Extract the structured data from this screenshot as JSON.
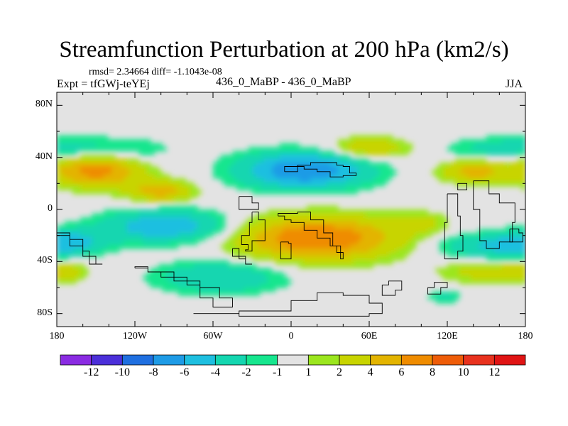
{
  "chart_data": {
    "type": "heatmap",
    "title": "Streamfunction Perturbation at 200 hPa (km2/s)",
    "stats_text": "rmsd= 2.34664 diff= -1.1043e-08",
    "left_label": "Expt = tfGWj-teYEj",
    "center_label": "436_0_MaBP - 436_0_MaBP",
    "right_label": "JJA",
    "x_ticks": [
      "180",
      "120W",
      "60W",
      "0",
      "60E",
      "120E",
      "180"
    ],
    "x_tick_values": [
      -180,
      -120,
      -60,
      0,
      60,
      120,
      180
    ],
    "y_ticks": [
      "80N",
      "40N",
      "0",
      "40S",
      "80S"
    ],
    "y_tick_values": [
      80,
      40,
      0,
      -40,
      -80
    ],
    "xlim": [
      -180,
      180
    ],
    "ylim": [
      -90,
      90
    ],
    "colorbar": {
      "levels": [
        -12,
        -10,
        -8,
        -6,
        -4,
        -2,
        -1,
        1,
        2,
        4,
        6,
        8,
        10,
        12
      ],
      "labels": [
        "-12",
        "-10",
        "-8",
        "-6",
        "-4",
        "-2",
        "-1",
        "1",
        "2",
        "4",
        "6",
        "8",
        "10",
        "12"
      ],
      "colors": [
        "#8a2be2",
        "#4b2fd9",
        "#1f6fe0",
        "#1e9be6",
        "#1ebfe0",
        "#14d6b0",
        "#16e68e",
        "#e3e3e3",
        "#9be61e",
        "#c8d400",
        "#e3b400",
        "#ef8c00",
        "#ee5c08",
        "#e8321e",
        "#e01414"
      ]
    },
    "fields": [
      {
        "lon": -150,
        "lat": 30,
        "sx": 25,
        "sy": 9,
        "v": 7
      },
      {
        "lon": -100,
        "lat": 14,
        "sx": 18,
        "sy": 6,
        "v": 5
      },
      {
        "lon": -95,
        "lat": -13,
        "sx": 35,
        "sy": 9,
        "v": -6
      },
      {
        "lon": 10,
        "lat": 30,
        "sx": 35,
        "sy": 10,
        "v": -8
      },
      {
        "lon": 20,
        "lat": -22,
        "sx": 45,
        "sy": 12,
        "v": 8
      },
      {
        "lon": 60,
        "lat": 47,
        "sx": 22,
        "sy": 6,
        "v": 4
      },
      {
        "lon": -140,
        "lat": 46,
        "sx": 35,
        "sy": 7,
        "v": -2.5
      },
      {
        "lon": -55,
        "lat": -52,
        "sx": 35,
        "sy": 9,
        "v": -4
      },
      {
        "lon": 140,
        "lat": 29,
        "sx": 18,
        "sy": 6,
        "v": 5
      },
      {
        "lon": 160,
        "lat": 47,
        "sx": 30,
        "sy": 6,
        "v": -2.5
      },
      {
        "lon": 150,
        "lat": -28,
        "sx": 30,
        "sy": 7,
        "v": -4
      },
      {
        "lon": 150,
        "lat": -48,
        "sx": 25,
        "sy": 6,
        "v": 3
      },
      {
        "lon": 100,
        "lat": -10,
        "sx": 15,
        "sy": 6,
        "v": 2
      },
      {
        "lon": -170,
        "lat": -25,
        "sx": 20,
        "sy": 7,
        "v": -4
      },
      {
        "lon": -175,
        "lat": -48,
        "sx": 12,
        "sy": 5,
        "v": 3
      },
      {
        "lon": 118,
        "lat": -67,
        "sx": 8,
        "sy": 3,
        "v": -3
      }
    ],
    "coastlines": [
      [
        [
          -5,
          29
        ],
        [
          5,
          34
        ],
        [
          15,
          36
        ],
        [
          25,
          36
        ],
        [
          35,
          34
        ],
        [
          40,
          33
        ],
        [
          45,
          28
        ],
        [
          50,
          26
        ],
        [
          40,
          25
        ],
        [
          30,
          29
        ],
        [
          20,
          31
        ],
        [
          10,
          33
        ],
        [
          -5,
          29
        ]
      ],
      [
        [
          -30,
          -2
        ],
        [
          -25,
          -2
        ],
        [
          -25,
          -8
        ],
        [
          -20,
          -12
        ],
        [
          -20,
          -24
        ],
        [
          -30,
          -32
        ],
        [
          -35,
          -31
        ],
        [
          -33,
          -27
        ],
        [
          -38,
          -20
        ],
        [
          -32,
          -10
        ],
        [
          -30,
          -2
        ]
      ],
      [
        [
          -40,
          10
        ],
        [
          -30,
          10
        ],
        [
          -30,
          5
        ],
        [
          -25,
          0
        ],
        [
          -40,
          0
        ],
        [
          -40,
          10
        ]
      ],
      [
        [
          -10,
          -5
        ],
        [
          -5,
          -8
        ],
        [
          0,
          -10
        ],
        [
          10,
          -16
        ],
        [
          20,
          -22
        ],
        [
          30,
          -28
        ],
        [
          35,
          -33
        ],
        [
          40,
          -38
        ],
        [
          38,
          -28
        ],
        [
          32,
          -18
        ],
        [
          25,
          -8
        ],
        [
          15,
          -2
        ],
        [
          5,
          -3
        ],
        [
          -10,
          -5
        ]
      ],
      [
        [
          -8,
          -25
        ],
        [
          -2,
          -26
        ],
        [
          0,
          -38
        ],
        [
          -8,
          -38
        ],
        [
          -8,
          -25
        ]
      ],
      [
        [
          -45,
          -30
        ],
        [
          -40,
          -38
        ],
        [
          -35,
          -42
        ],
        [
          -30,
          -42
        ],
        [
          -35,
          -36
        ],
        [
          -45,
          -30
        ]
      ],
      [
        [
          -180,
          -18
        ],
        [
          -170,
          -23
        ],
        [
          -160,
          -32
        ],
        [
          -155,
          -42
        ],
        [
          -145,
          -42
        ],
        [
          -150,
          -36
        ],
        [
          -160,
          -28
        ],
        [
          -170,
          -20
        ],
        [
          -180,
          -18
        ]
      ],
      [
        [
          -120,
          -45
        ],
        [
          -110,
          -48
        ],
        [
          -100,
          -52
        ],
        [
          -90,
          -52
        ],
        [
          -80,
          -58
        ],
        [
          -70,
          -68
        ],
        [
          -60,
          -75
        ],
        [
          -50,
          -75
        ],
        [
          -45,
          -68
        ],
        [
          -55,
          -60
        ],
        [
          -70,
          -55
        ],
        [
          -90,
          -48
        ],
        [
          -110,
          -44
        ],
        [
          -120,
          -45
        ]
      ],
      [
        [
          -75,
          -80
        ],
        [
          -40,
          -82
        ],
        [
          20,
          -82
        ],
        [
          60,
          -80
        ],
        [
          70,
          -72
        ],
        [
          60,
          -66
        ],
        [
          40,
          -64
        ],
        [
          20,
          -70
        ],
        [
          0,
          -78
        ],
        [
          -40,
          -80
        ],
        [
          -75,
          -80
        ]
      ],
      [
        [
          70,
          -58
        ],
        [
          75,
          -55
        ],
        [
          85,
          -62
        ],
        [
          80,
          -66
        ],
        [
          70,
          -58
        ]
      ],
      [
        [
          105,
          -60
        ],
        [
          110,
          -56
        ],
        [
          120,
          -60
        ],
        [
          115,
          -65
        ],
        [
          105,
          -60
        ]
      ],
      [
        [
          120,
          12
        ],
        [
          128,
          10
        ],
        [
          128,
          -5
        ],
        [
          130,
          -20
        ],
        [
          132,
          -32
        ],
        [
          128,
          -38
        ],
        [
          120,
          -38
        ],
        [
          118,
          -25
        ],
        [
          118,
          -10
        ],
        [
          120,
          12
        ]
      ],
      [
        [
          128,
          20
        ],
        [
          135,
          20
        ],
        [
          135,
          15
        ],
        [
          128,
          15
        ],
        [
          128,
          20
        ]
      ],
      [
        [
          140,
          22
        ],
        [
          150,
          22
        ],
        [
          152,
          12
        ],
        [
          160,
          5
        ],
        [
          170,
          5
        ],
        [
          172,
          -10
        ],
        [
          170,
          -25
        ],
        [
          160,
          -30
        ],
        [
          150,
          -24
        ],
        [
          145,
          -10
        ],
        [
          145,
          0
        ],
        [
          140,
          10
        ],
        [
          140,
          22
        ]
      ],
      [
        [
          168,
          -15
        ],
        [
          175,
          -18
        ],
        [
          178,
          -25
        ],
        [
          172,
          -25
        ],
        [
          168,
          -15
        ]
      ]
    ]
  }
}
